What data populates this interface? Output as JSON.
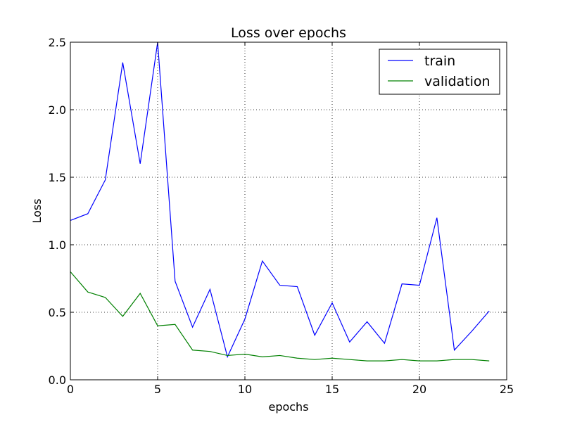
{
  "chart_data": {
    "type": "line",
    "title": "Loss over epochs",
    "xlabel": "epochs",
    "ylabel": "Loss",
    "xlim": [
      0,
      25
    ],
    "ylim": [
      0.0,
      2.5
    ],
    "xticks": [
      "0",
      "5",
      "10",
      "15",
      "20",
      "25"
    ],
    "yticks": [
      "0.0",
      "0.5",
      "1.0",
      "1.5",
      "2.0",
      "2.5"
    ],
    "grid": true,
    "legend_position": "top-right",
    "x": [
      0,
      1,
      2,
      3,
      4,
      5,
      6,
      7,
      8,
      9,
      10,
      11,
      12,
      13,
      14,
      15,
      16,
      17,
      18,
      19,
      20,
      21,
      22,
      23,
      24
    ],
    "series": [
      {
        "name": "train",
        "color": "#0000ff",
        "values": [
          1.18,
          1.23,
          1.48,
          2.35,
          1.6,
          2.5,
          0.73,
          0.39,
          0.67,
          0.17,
          0.45,
          0.88,
          0.7,
          0.69,
          0.33,
          0.57,
          0.28,
          0.43,
          0.27,
          0.71,
          0.7,
          1.2,
          0.22,
          0.36,
          0.51
        ]
      },
      {
        "name": "validation",
        "color": "#008000",
        "values": [
          0.8,
          0.65,
          0.61,
          0.47,
          0.64,
          0.4,
          0.41,
          0.22,
          0.21,
          0.18,
          0.19,
          0.17,
          0.18,
          0.16,
          0.15,
          0.16,
          0.15,
          0.14,
          0.14,
          0.15,
          0.14,
          0.14,
          0.15,
          0.15,
          0.14
        ]
      }
    ]
  }
}
